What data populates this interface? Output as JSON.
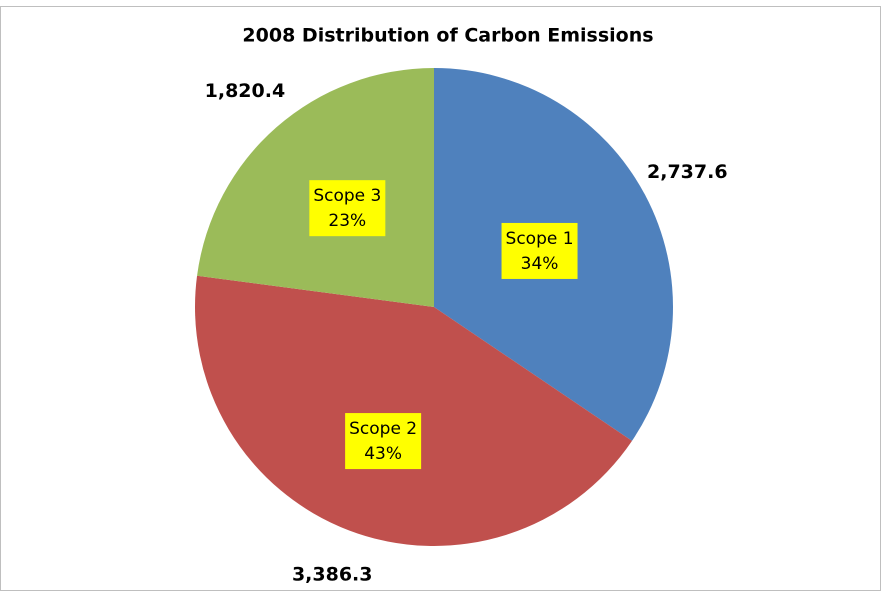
{
  "chart_data": {
    "type": "pie",
    "title": "2008 Distribution of Carbon Emissions",
    "categories": [
      "Scope 1",
      "Scope 2",
      "Scope 3"
    ],
    "values": [
      2737.6,
      3386.3,
      1820.4
    ],
    "value_labels": [
      "2,737.6",
      "3,386.3",
      "1,820.4"
    ],
    "percent_labels": [
      "34%",
      "43%",
      "23%"
    ],
    "colors": [
      "#4f81bd",
      "#c0504d",
      "#9bbb59"
    ]
  }
}
